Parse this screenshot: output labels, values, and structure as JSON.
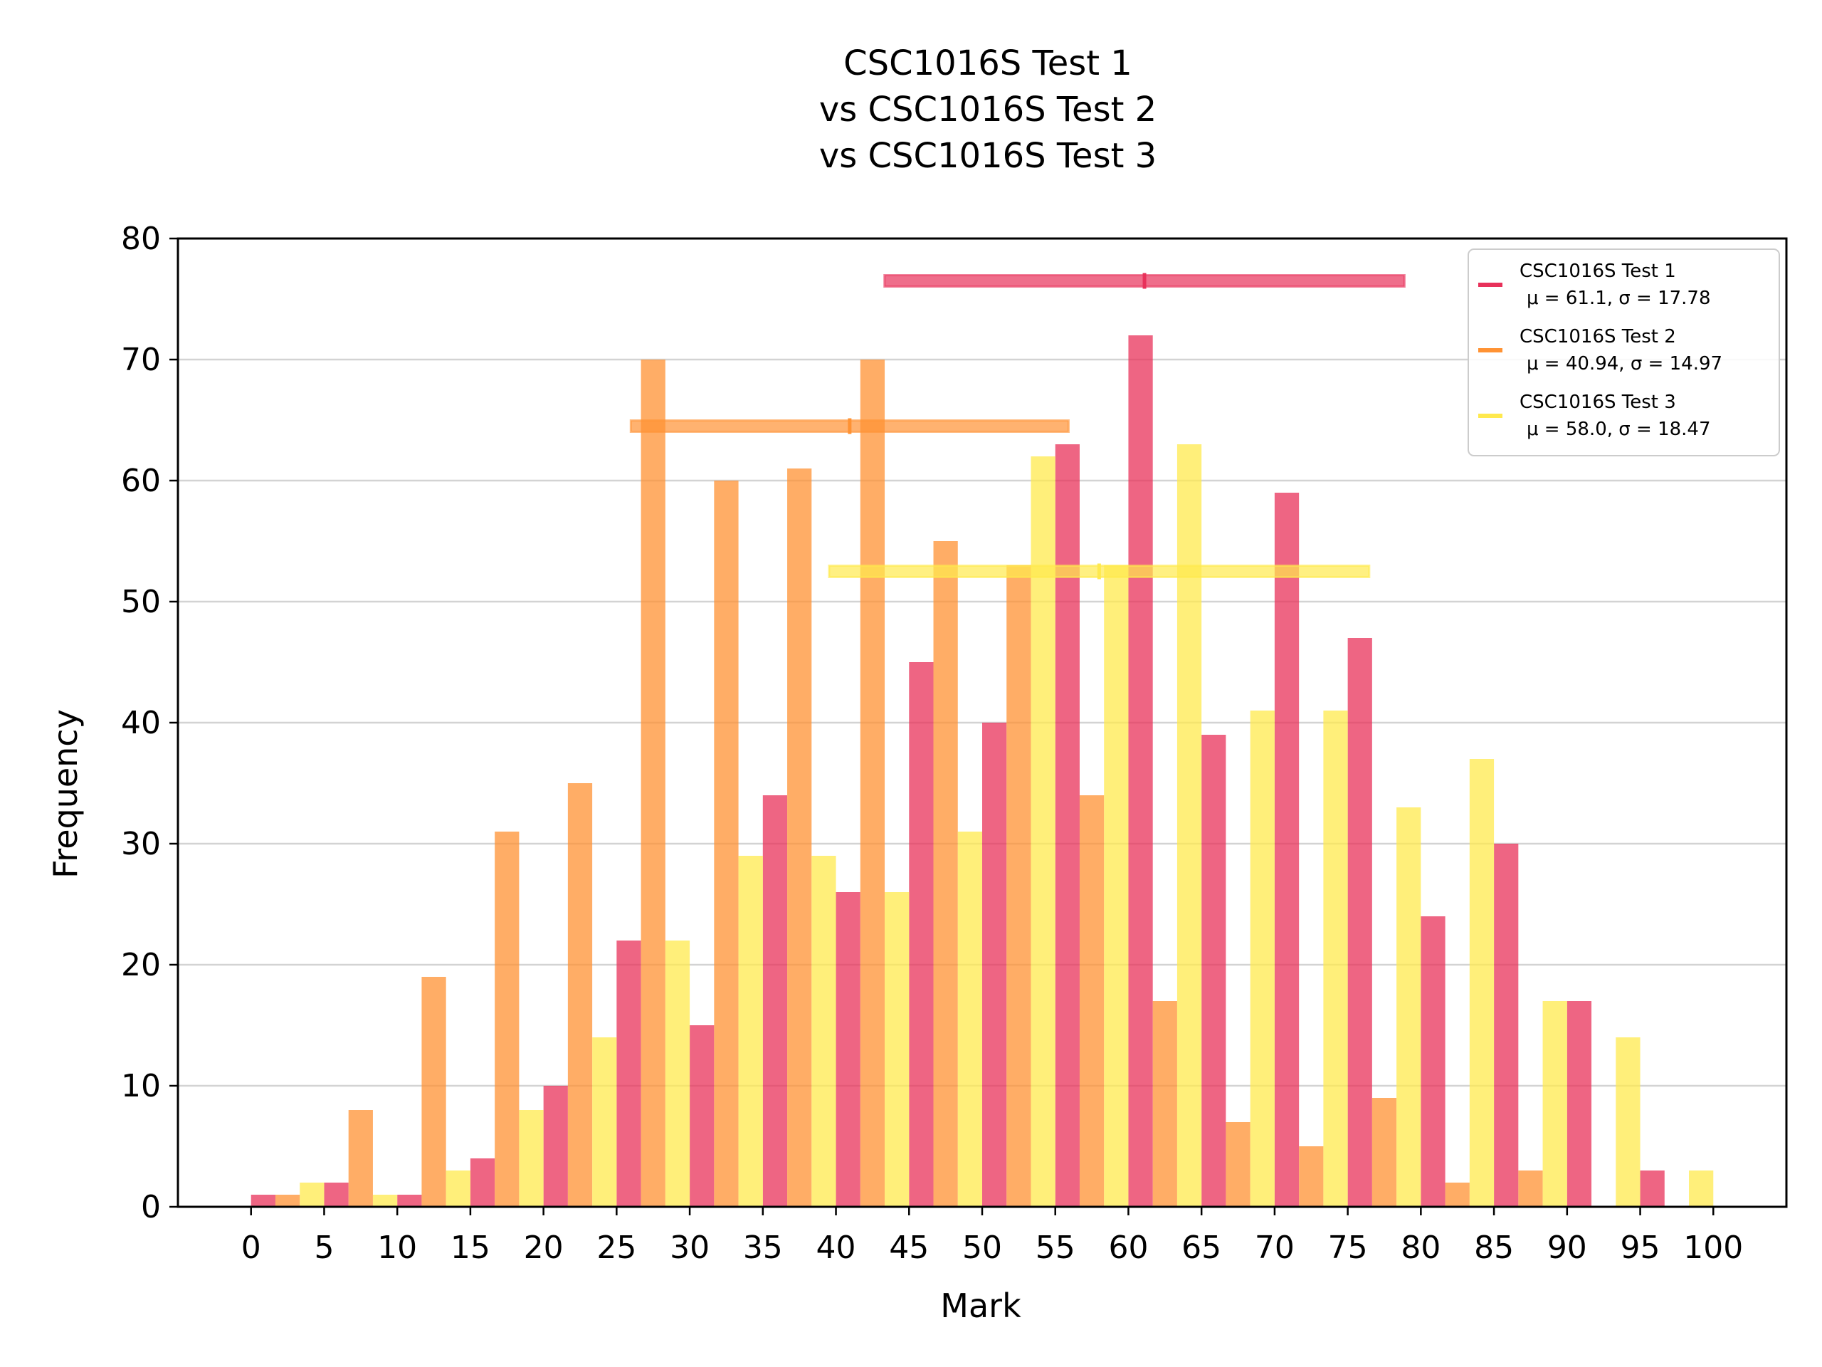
{
  "chart_data": {
    "type": "bar",
    "title_lines": [
      "CSC1016S Test 1",
      "vs CSC1016S Test 2",
      "vs CSC1016S Test 3"
    ],
    "xlabel": "Mark",
    "ylabel": "Frequency",
    "xlim": [
      -5,
      105
    ],
    "ylim": [
      0,
      80
    ],
    "xticks": [
      0,
      5,
      10,
      15,
      20,
      25,
      30,
      35,
      40,
      45,
      50,
      55,
      60,
      65,
      70,
      75,
      80,
      85,
      90,
      95,
      100
    ],
    "xtick_labels": [
      "0",
      "5",
      "10",
      "15",
      "20",
      "25",
      "30",
      "35",
      "40",
      "45",
      "50",
      "55",
      "60",
      "65",
      "70",
      "75",
      "80",
      "85",
      "90",
      "95",
      "100"
    ],
    "yticks": [
      0,
      10,
      20,
      30,
      40,
      50,
      60,
      70,
      80
    ],
    "ytick_labels": [
      "0",
      "10",
      "20",
      "30",
      "40",
      "50",
      "60",
      "70",
      "80"
    ],
    "grid": "horizontal",
    "legend_position": "top-right",
    "bin_edges": [
      0,
      5,
      10,
      15,
      20,
      25,
      30,
      35,
      40,
      45,
      50,
      55,
      60,
      65,
      70,
      75,
      80,
      85,
      90,
      95,
      100
    ],
    "series": [
      {
        "name": "CSC1016S Test 1",
        "stats_label": "μ = 61.1, σ = 17.78",
        "mean": 61.1,
        "std": 17.78,
        "color": "#e8315a",
        "values": [
          1,
          2,
          1,
          4,
          10,
          22,
          15,
          34,
          26,
          45,
          40,
          63,
          72,
          39,
          59,
          47,
          24,
          30,
          17,
          3
        ],
        "range_bar_y": 76.5
      },
      {
        "name": "CSC1016S Test 2",
        "stats_label": "μ = 40.94, σ = 14.97",
        "mean": 40.94,
        "std": 14.97,
        "color": "#ff9233",
        "values": [
          1,
          8,
          19,
          31,
          35,
          70,
          60,
          61,
          70,
          55,
          53,
          34,
          17,
          7,
          5,
          9,
          2,
          3,
          0,
          0
        ],
        "range_bar_y": 64.5
      },
      {
        "name": "CSC1016S Test 3",
        "stats_label": "μ = 58.0, σ = 18.47",
        "mean": 58.0,
        "std": 18.47,
        "color": "#ffe94d",
        "values": [
          2,
          1,
          3,
          8,
          14,
          22,
          29,
          29,
          26,
          31,
          62,
          53,
          63,
          41,
          41,
          33,
          37,
          17,
          14,
          3
        ],
        "range_bar_y": 52.5
      }
    ]
  }
}
